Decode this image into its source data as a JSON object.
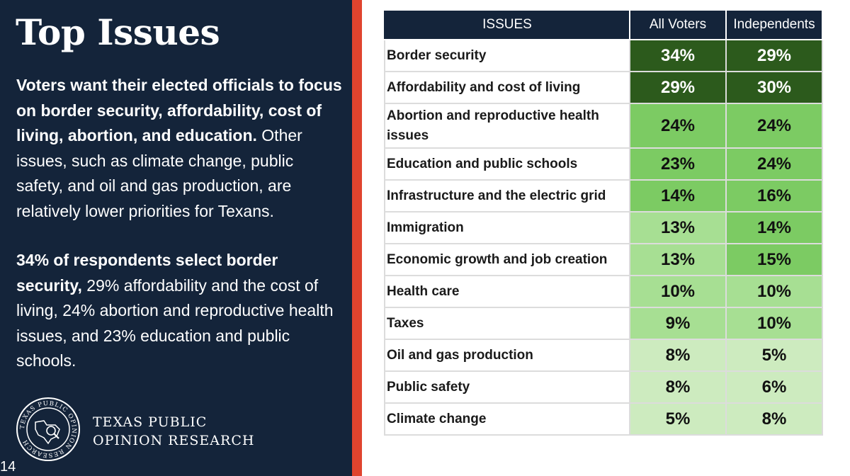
{
  "slide": {
    "title": "Top Issues",
    "page_number": "14"
  },
  "left": {
    "para1_bold": "Voters want their elected officials to focus on border security, affordability, cost of living, abortion, and education.",
    "para1_rest": " Other issues, such as climate change, public safety, and oil and gas production, are relatively lower priorities for Texans.",
    "para2_bold": "34% of respondents select border security,",
    "para2_rest": " 29% affordability and the cost of living, 24% abortion and reproductive health issues, and 23% education and public schools."
  },
  "logo": {
    "line1": "TEXAS PUBLIC",
    "line2": "OPINION RESEARCH",
    "seal_text": "TEXAS PUBLIC OPINION RESEARCH"
  },
  "table": {
    "headers": [
      "ISSUES",
      "All Voters",
      "Independents"
    ],
    "rows": [
      {
        "issue": "Border security",
        "all_voters": "34%",
        "independents": "29%"
      },
      {
        "issue": "Affordability and cost of living",
        "all_voters": "29%",
        "independents": "30%"
      },
      {
        "issue": "Abortion and reproductive health issues",
        "all_voters": "24%",
        "independents": "24%"
      },
      {
        "issue": "Education and public schools",
        "all_voters": "23%",
        "independents": "24%"
      },
      {
        "issue": "Infrastructure and the electric grid",
        "all_voters": "14%",
        "independents": "16%"
      },
      {
        "issue": "Immigration",
        "all_voters": "13%",
        "independents": "14%"
      },
      {
        "issue": "Economic growth and job creation",
        "all_voters": "13%",
        "independents": "15%"
      },
      {
        "issue": "Health care",
        "all_voters": "10%",
        "independents": "10%"
      },
      {
        "issue": "Taxes",
        "all_voters": "9%",
        "independents": "10%"
      },
      {
        "issue": "Oil and gas production",
        "all_voters": "8%",
        "independents": "5%"
      },
      {
        "issue": "Public safety",
        "all_voters": "8%",
        "independents": "6%"
      },
      {
        "issue": "Climate change",
        "all_voters": "5%",
        "independents": "8%"
      }
    ]
  },
  "colors": {
    "panel_bg": "#14243a",
    "accent_red": "#e0442e",
    "cell_dark_green": "#2c5a1c",
    "cell_mid_green": "#7ccb63",
    "cell_light_green": "#a7df93",
    "cell_pale_green": "#cdebbf"
  }
}
